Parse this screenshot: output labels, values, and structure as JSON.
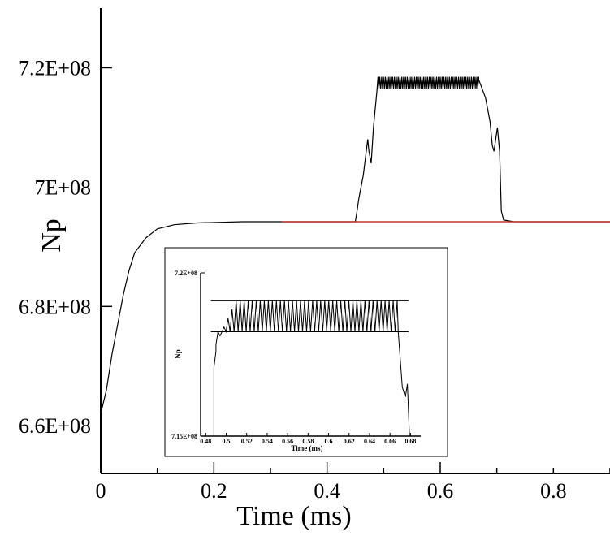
{
  "chart_data": [
    {
      "type": "line",
      "xlabel": "Time (ms)",
      "ylabel": "Np",
      "xlim": [
        0,
        0.9
      ],
      "ylim": [
        652000000.0,
        730000000.0
      ],
      "x_ticks": [
        {
          "value": 0,
          "label": "0"
        },
        {
          "value": 0.2,
          "label": "0.2"
        },
        {
          "value": 0.4,
          "label": "0.4"
        },
        {
          "value": 0.6,
          "label": "0.6"
        },
        {
          "value": 0.8,
          "label": "0.8"
        }
      ],
      "y_ticks": [
        {
          "value": 660000000.0,
          "label": "6.6E+08"
        },
        {
          "value": 680000000.0,
          "label": "6.8E+08"
        },
        {
          "value": 700000000.0,
          "label": "7E+08"
        },
        {
          "value": 720000000.0,
          "label": "7.2E+08"
        }
      ],
      "y_minor_step": 40000000.0,
      "series": [
        {
          "color": "#000000",
          "baseline_points": [
            [
              0,
              662000000.0
            ],
            [
              0.01,
              666000000.0
            ],
            [
              0.02,
              672000000.0
            ],
            [
              0.03,
              677000000.0
            ],
            [
              0.04,
              682000000.0
            ],
            [
              0.05,
              686000000.0
            ],
            [
              0.06,
              689000000.0
            ],
            [
              0.08,
              691500000.0
            ],
            [
              0.1,
              693000000.0
            ],
            [
              0.13,
              693700000.0
            ],
            [
              0.17,
              694000000.0
            ],
            [
              0.25,
              694200000.0
            ],
            [
              0.35,
              694200000.0
            ],
            [
              0.45,
              694200000.0
            ]
          ],
          "pulse_points": [
            [
              0.45,
              694200000.0
            ],
            [
              0.453,
              696000000.0
            ],
            [
              0.456,
              698000000.0
            ],
            [
              0.46,
              700000000.0
            ],
            [
              0.464,
              702000000.0
            ],
            [
              0.468,
              705000000.0
            ],
            [
              0.472,
              708000000.0
            ],
            [
              0.474,
              706000000.0
            ],
            [
              0.478,
              704000000.0
            ],
            [
              0.482,
              710000000.0
            ],
            [
              0.488,
              716000000.0
            ]
          ],
          "oscillation": {
            "x_start": 0.49,
            "x_end": 0.668,
            "y_low": 716500000.0,
            "y_high": 718500000.0,
            "cycles": 55
          },
          "decay_points": [
            [
              0.668,
              718000000.0
            ],
            [
              0.672,
              717000000.0
            ],
            [
              0.676,
              716000000.0
            ],
            [
              0.68,
              715000000.0
            ],
            [
              0.684,
              713000000.0
            ],
            [
              0.688,
              711000000.0
            ],
            [
              0.692,
              707000000.0
            ],
            [
              0.695,
              706000000.0
            ],
            [
              0.698,
              708000000.0
            ],
            [
              0.701,
              710000000.0
            ],
            [
              0.705,
              706000000.0
            ],
            [
              0.708,
              696000000.0
            ],
            [
              0.712,
              694500000.0
            ],
            [
              0.73,
              694200000.0
            ],
            [
              0.9,
              694200000.0
            ]
          ]
        },
        {
          "color": "#c0392b",
          "points": [
            [
              0.32,
              694200000.0
            ],
            [
              0.9,
              694200000.0
            ]
          ]
        }
      ]
    },
    {
      "type": "line",
      "xlabel": "Time (ms)",
      "ylabel": "Np",
      "y_ticks": [
        {
          "value": 7.2,
          "label": "7.2E+08"
        },
        {
          "value": 7.15,
          "label": "7.15E+08"
        }
      ],
      "x_ticks": [
        {
          "value": 0.48,
          "label": "0.48"
        },
        {
          "value": 0.5,
          "label": "0.5"
        },
        {
          "value": 0.52,
          "label": "0.52"
        },
        {
          "value": 0.54,
          "label": "0.54"
        },
        {
          "value": 0.56,
          "label": "0.56"
        },
        {
          "value": 0.58,
          "label": "0.58"
        },
        {
          "value": 0.6,
          "label": "0.6"
        },
        {
          "value": 0.62,
          "label": "0.62"
        },
        {
          "value": 0.64,
          "label": "0.64"
        },
        {
          "value": 0.66,
          "label": "0.66"
        },
        {
          "value": 0.68,
          "label": "0.68"
        }
      ],
      "xlim": [
        0.475,
        0.69
      ],
      "ylim": [
        7.15,
        7.2
      ],
      "reference_lines": [
        7.1915,
        7.182
      ],
      "oscillation": {
        "x_start": 0.49,
        "x_end": 0.667,
        "y_low": 7.182,
        "y_high": 7.1915,
        "cycles": 45
      }
    }
  ]
}
